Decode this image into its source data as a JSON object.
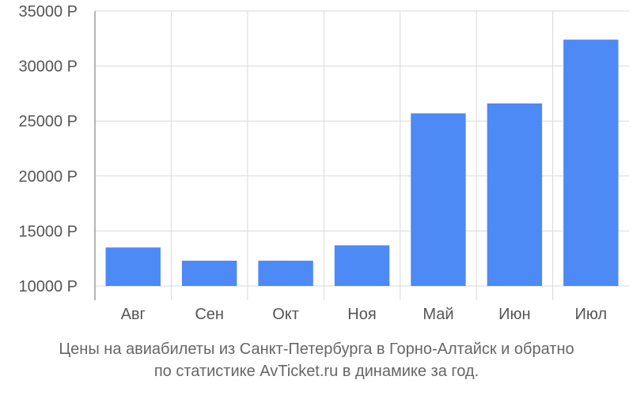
{
  "chart_data": {
    "type": "bar",
    "categories": [
      "Авг",
      "Сен",
      "Окт",
      "Ноя",
      "Май",
      "Июн",
      "Июл"
    ],
    "values": [
      13500,
      12300,
      12300,
      13700,
      25700,
      26600,
      32400
    ],
    "title": "",
    "xlabel": "",
    "ylabel": "",
    "ylim": [
      10000,
      35000
    ],
    "yticks": [
      10000,
      15000,
      20000,
      25000,
      30000,
      35000
    ],
    "ytick_labels": [
      "10000 Р",
      "15000 Р",
      "20000 Р",
      "25000 Р",
      "30000 Р",
      "35000 Р"
    ],
    "bar_color": "#4d8af5",
    "grid": true,
    "legend": "none"
  },
  "caption": {
    "line1": "Цены на авиабилеты из Санкт-Петербурга в Горно-Алтайск и обратно",
    "line2": "по статистике AvTicket.ru в динамике за год."
  }
}
